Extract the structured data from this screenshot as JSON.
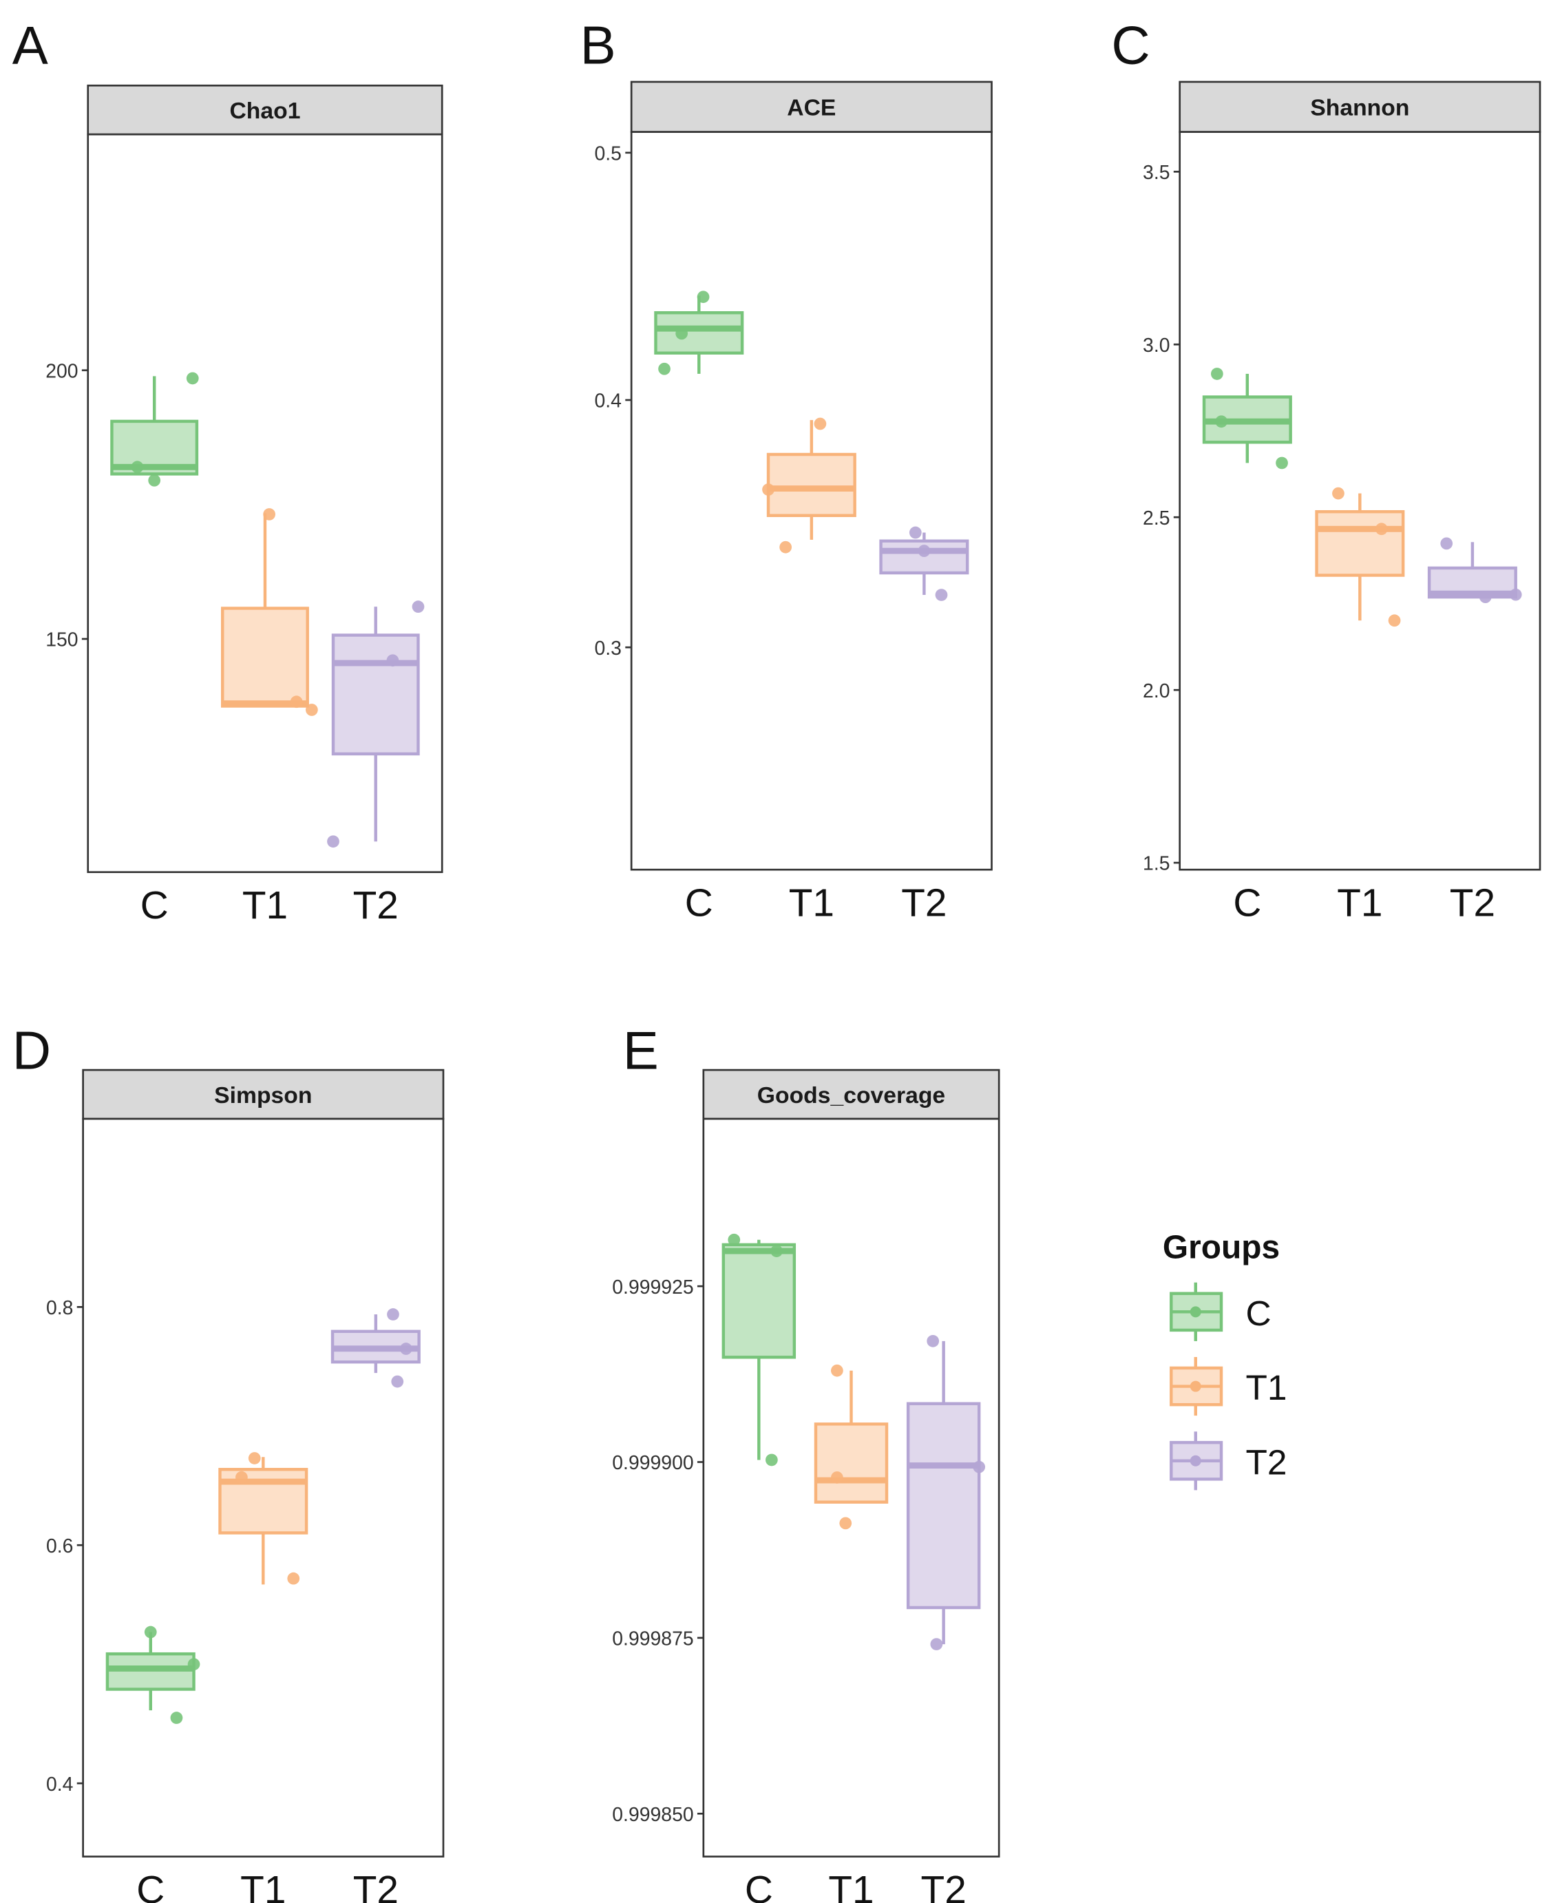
{
  "colors": {
    "C": "#77c47a",
    "T1": "#f8b37a",
    "T2": "#b4a5d4"
  },
  "fills": {
    "C": "#c2e5c3",
    "T1": "#fde0c8",
    "T2": "#e0d8ec"
  },
  "legend": {
    "title": "Groups",
    "items": [
      "C",
      "T1",
      "T2"
    ]
  },
  "chart_data": [
    {
      "type": "box",
      "panel_letter": "A",
      "title": "Chao1",
      "categories": [
        "C",
        "T1",
        "T2"
      ],
      "ylim": [
        106.6,
        243.9
      ],
      "yticks": [
        150,
        200
      ],
      "ytick_labels": [
        "150",
        "200"
      ],
      "boxes": [
        {
          "group": "C",
          "whisker_low": 180.7,
          "q1": 180.7,
          "median": 182,
          "q3": 190.5,
          "whisker_high": 198.9,
          "points": [
            198.5,
            182,
            179.5
          ]
        },
        {
          "group": "T1",
          "whisker_low": 137.5,
          "q1": 137.5,
          "median": 138,
          "q3": 155.7,
          "whisker_high": 173.4,
          "points": [
            173.2,
            138.3,
            136.8
          ]
        },
        {
          "group": "T2",
          "whisker_low": 112.3,
          "q1": 128.6,
          "median": 145.5,
          "q3": 150.7,
          "whisker_high": 156,
          "points": [
            156,
            146,
            112.3
          ]
        }
      ]
    },
    {
      "type": "box",
      "panel_letter": "B",
      "title": "ACE",
      "categories": [
        "C",
        "T1",
        "T2"
      ],
      "ylim": [
        0.2101,
        0.5084
      ],
      "yticks": [
        0.3,
        0.4,
        0.5
      ],
      "ytick_labels": [
        "0.3",
        "0.4",
        "0.5"
      ],
      "boxes": [
        {
          "group": "C",
          "whisker_low": 0.4106,
          "q1": 0.419,
          "median": 0.4289,
          "q3": 0.4353,
          "whisker_high": 0.4422,
          "points": [
            0.4417,
            0.4269,
            0.4126
          ]
        },
        {
          "group": "T1",
          "whisker_low": 0.3435,
          "q1": 0.3533,
          "median": 0.3642,
          "q3": 0.378,
          "whisker_high": 0.3919,
          "points": [
            0.3904,
            0.3638,
            0.3405
          ]
        },
        {
          "group": "T2",
          "whisker_low": 0.3212,
          "q1": 0.3301,
          "median": 0.339,
          "q3": 0.343,
          "whisker_high": 0.3464,
          "points": [
            0.3464,
            0.339,
            0.3212
          ]
        }
      ]
    },
    {
      "type": "box",
      "panel_letter": "C",
      "title": "Shannon",
      "categories": [
        "C",
        "T1",
        "T2"
      ],
      "ylim": [
        1.48,
        3.615
      ],
      "yticks": [
        1.5,
        2.0,
        2.5,
        3.0,
        3.5
      ],
      "ytick_labels": [
        "1.5",
        "2.0",
        "2.5",
        "3.0",
        "3.5"
      ],
      "boxes": [
        {
          "group": "C",
          "whisker_low": 2.657,
          "q1": 2.717,
          "median": 2.777,
          "q3": 2.848,
          "whisker_high": 2.915,
          "points": [
            2.915,
            2.777,
            2.657
          ]
        },
        {
          "group": "T1",
          "whisker_low": 2.201,
          "q1": 2.332,
          "median": 2.466,
          "q3": 2.516,
          "whisker_high": 2.569,
          "points": [
            2.569,
            2.466,
            2.201
          ]
        },
        {
          "group": "T2",
          "whisker_low": 2.269,
          "q1": 2.269,
          "median": 2.279,
          "q3": 2.353,
          "whisker_high": 2.428,
          "points": [
            2.424,
            2.269,
            2.276
          ]
        }
      ]
    },
    {
      "type": "box",
      "panel_letter": "D",
      "title": "Simpson",
      "categories": [
        "C",
        "T1",
        "T2"
      ],
      "ylim": [
        0.3385,
        0.958
      ],
      "yticks": [
        0.4,
        0.6,
        0.8
      ],
      "ytick_labels": [
        "0.4",
        "0.6",
        "0.8"
      ],
      "boxes": [
        {
          "group": "C",
          "whisker_low": 0.4613,
          "q1": 0.479,
          "median": 0.4964,
          "q3": 0.5087,
          "whisker_high": 0.527,
          "points": [
            0.527,
            0.5,
            0.455
          ]
        },
        {
          "group": "T1",
          "whisker_low": 0.567,
          "q1": 0.6103,
          "median": 0.6533,
          "q3": 0.6636,
          "whisker_high": 0.674,
          "points": [
            0.673,
            0.657,
            0.572
          ]
        },
        {
          "group": "T2",
          "whisker_low": 0.7446,
          "q1": 0.7538,
          "median": 0.765,
          "q3": 0.7795,
          "whisker_high": 0.7938,
          "points": [
            0.7938,
            0.7649,
            0.7374
          ]
        }
      ]
    },
    {
      "type": "box",
      "panel_letter": "E",
      "title": "Goods_coverage",
      "categories": [
        "C",
        "T1",
        "T2"
      ],
      "ylim": [
        0.9998439,
        0.9999488
      ],
      "yticks": [
        0.99985,
        0.999875,
        0.9999,
        0.999925
      ],
      "ytick_labels": [
        "0.999850",
        "0.999875",
        "0.999900",
        "0.999925"
      ],
      "boxes": [
        {
          "group": "C",
          "whisker_low": 0.9999003,
          "q1": 0.9999149,
          "median": 0.99993,
          "q3": 0.9999309,
          "whisker_high": 0.9999316,
          "points": [
            0.9999316,
            0.99993,
            0.9999003
          ]
        },
        {
          "group": "T1",
          "whisker_low": 0.9998943,
          "q1": 0.9998943,
          "median": 0.9998974,
          "q3": 0.9999054,
          "whisker_high": 0.999913,
          "points": [
            0.999913,
            0.9998978,
            0.9998913
          ]
        },
        {
          "group": "T2",
          "whisker_low": 0.9998741,
          "q1": 0.9998793,
          "median": 0.9998995,
          "q3": 0.9999083,
          "whisker_high": 0.9999172,
          "points": [
            0.9999172,
            0.9998993,
            0.9998741
          ]
        }
      ]
    }
  ]
}
